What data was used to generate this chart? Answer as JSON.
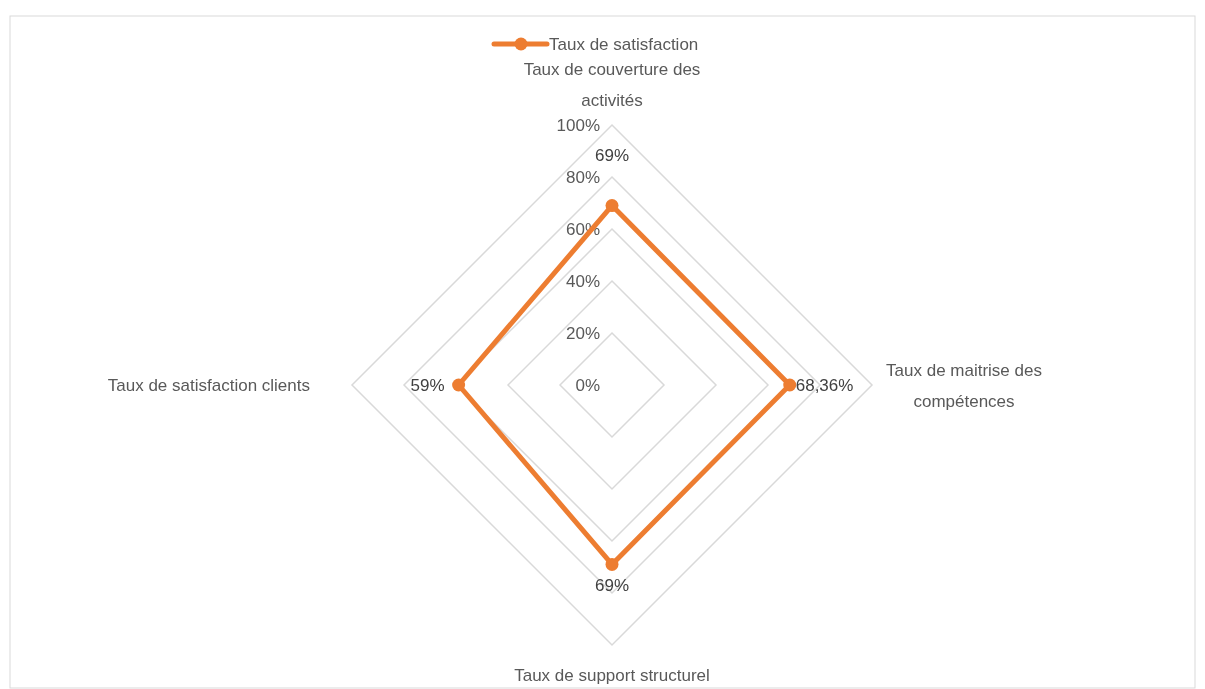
{
  "chart_data": {
    "type": "radar",
    "categories": [
      "Taux de couverture des activités",
      "Taux de maitrise des compétences",
      "Taux de support structurel",
      "Taux de satisfaction clients"
    ],
    "series": [
      {
        "name": "Taux de satisfaction",
        "color": "#ed7d31",
        "values": [
          69,
          68.36,
          69,
          59
        ],
        "value_labels": [
          "69%",
          "68,36%",
          "69%",
          "59%"
        ]
      }
    ],
    "ylim": [
      0,
      100
    ],
    "yticks": [
      {
        "value": 0,
        "label": "0%"
      },
      {
        "value": 20,
        "label": "20%"
      },
      {
        "value": 40,
        "label": "40%"
      },
      {
        "value": 60,
        "label": "60%"
      },
      {
        "value": 80,
        "label": "80%"
      },
      {
        "value": 100,
        "label": "100%"
      }
    ],
    "grid": true,
    "legend": "top",
    "marker": "circle"
  }
}
